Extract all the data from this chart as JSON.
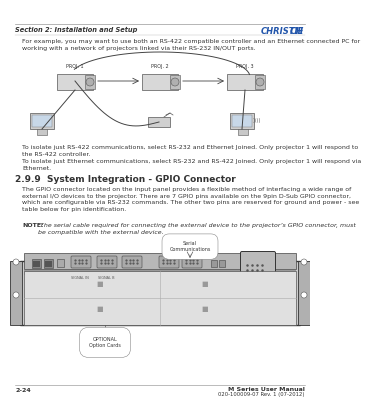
{
  "bg_color": "#ffffff",
  "header_left": "Section 2: Installation and Setup",
  "footer_left": "2-24",
  "footer_right_line1": "M Series User Manual",
  "footer_right_line2": "020-100009-07 Rev. 1 (07-2012)",
  "body_text_1": "For example, you may want to use both an RS-422 compatible controller and an Ethernet connected PC for\nworking with a network of projectors linked via their RS-232 IN/OUT ports.",
  "isolate_422": "To isolate just RS-422 communications, select RS-232 and Ethernet Joined. Only projector 1 will respond to\nthe RS-422 controller.",
  "isolate_eth": "To isolate just Ethernet communications, select RS-232 and RS-422 Joined. Only projector 1 will respond via\nEthernet.",
  "section_heading": "2.9.9  System Integration - GPIO Connector",
  "gpio_text": "The GPIO connector located on the input panel provides a flexible method of interfacing a wide range of\nexternal I/O devices to the projector. There are 7 GPIO pins available on the 9pin D-Sub GPIO connector,\nwhich are configurable via RS-232 commands. The other two pins are reserved for ground and power - see\ntable below for pin identification.",
  "note_bold": "NOTE:",
  "note_italic": " The serial cable required for connecting the external device to the projector’s GPIO connector, must\nbe compatible with the external device.",
  "proj_labels": [
    "PROJ. 1",
    "PROJ. 2",
    "PROJ. 3"
  ],
  "text_color": "#333333",
  "text_size": 4.5,
  "section_heading_size": 6.5,
  "christie_color": "#2255aa"
}
